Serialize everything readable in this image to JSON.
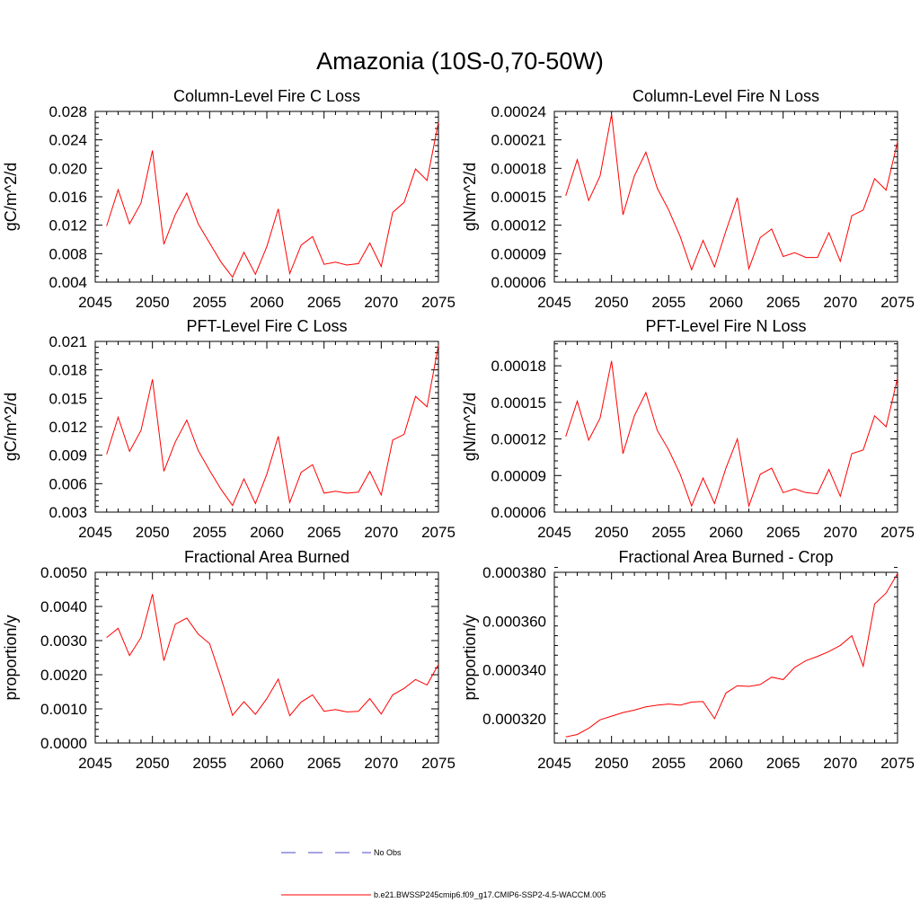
{
  "title": "Amazonia (10S-0,70-50W)",
  "legend": [
    {
      "label": "No Obs",
      "style": "dashed",
      "color": "#4a4ac8"
    },
    {
      "label": "b.e21.BWSSP245cmip6.f09_g17.CMIP6-SSP2-4.5-WACCM.005",
      "style": "solid",
      "color": "#ff0000"
    }
  ],
  "chart_data": [
    {
      "type": "line",
      "title": "Column-Level Fire C Loss",
      "ylabel": "gC/m^2/d",
      "xlabel": "",
      "xlim": [
        2045,
        2075
      ],
      "xticks": [
        "2045",
        "2050",
        "2055",
        "2060",
        "2065",
        "2070",
        "2075"
      ],
      "ylim": [
        0.004,
        0.028
      ],
      "yticks": [
        "0.004",
        "0.008",
        "0.012",
        "0.016",
        "0.020",
        "0.024",
        "0.028"
      ],
      "x": [
        2046,
        2047,
        2048,
        2049,
        2050,
        2051,
        2052,
        2053,
        2054,
        2055,
        2056,
        2057,
        2058,
        2059,
        2060,
        2061,
        2062,
        2063,
        2064,
        2065,
        2066,
        2067,
        2068,
        2069,
        2070,
        2071,
        2072,
        2073,
        2074,
        2075
      ],
      "series": [
        {
          "name": "b.e21.BWSSP245cmip6.f09_g17.CMIP6-SSP2-4.5-WACCM.005",
          "color": "#ff0000",
          "values": [
            0.0119,
            0.017,
            0.0122,
            0.0151,
            0.0225,
            0.0093,
            0.0135,
            0.0165,
            0.0122,
            0.0095,
            0.0068,
            0.0047,
            0.0082,
            0.0051,
            0.009,
            0.0143,
            0.0052,
            0.0092,
            0.0104,
            0.0065,
            0.0068,
            0.0064,
            0.0066,
            0.0095,
            0.0062,
            0.0138,
            0.0152,
            0.0199,
            0.0183,
            0.0265
          ]
        }
      ]
    },
    {
      "type": "line",
      "title": "Column-Level Fire N Loss",
      "ylabel": "gN/m^2/d",
      "xlabel": "",
      "xlim": [
        2045,
        2075
      ],
      "xticks": [
        "2045",
        "2050",
        "2055",
        "2060",
        "2065",
        "2070",
        "2075"
      ],
      "ylim": [
        6e-05,
        0.00024
      ],
      "yticks": [
        "0.00006",
        "0.00009",
        "0.00012",
        "0.00015",
        "0.00018",
        "0.00021",
        "0.00024"
      ],
      "x": [
        2046,
        2047,
        2048,
        2049,
        2050,
        2051,
        2052,
        2053,
        2054,
        2055,
        2056,
        2057,
        2058,
        2059,
        2060,
        2061,
        2062,
        2063,
        2064,
        2065,
        2066,
        2067,
        2068,
        2069,
        2070,
        2071,
        2072,
        2073,
        2074,
        2075
      ],
      "series": [
        {
          "name": "b.e21.BWSSP245cmip6.f09_g17.CMIP6-SSP2-4.5-WACCM.005",
          "color": "#ff0000",
          "values": [
            0.000151,
            0.000189,
            0.000146,
            0.000172,
            0.000237,
            0.000131,
            0.000172,
            0.000197,
            0.000159,
            0.000136,
            0.000108,
            7.3e-05,
            0.000104,
            7.6e-05,
            0.000114,
            0.000149,
            7.4e-05,
            0.000107,
            0.000116,
            8.7e-05,
            9.1e-05,
            8.6e-05,
            8.6e-05,
            0.000112,
            8.2e-05,
            0.00013,
            0.000136,
            0.000169,
            0.000157,
            0.000208
          ]
        }
      ]
    },
    {
      "type": "line",
      "title": "PFT-Level Fire C Loss",
      "ylabel": "gC/m^2/d",
      "xlabel": "",
      "xlim": [
        2045,
        2075
      ],
      "xticks": [
        "2045",
        "2050",
        "2055",
        "2060",
        "2065",
        "2070",
        "2075"
      ],
      "ylim": [
        0.003,
        0.021
      ],
      "yticks": [
        "0.003",
        "0.006",
        "0.009",
        "0.012",
        "0.015",
        "0.018",
        "0.021"
      ],
      "x": [
        2046,
        2047,
        2048,
        2049,
        2050,
        2051,
        2052,
        2053,
        2054,
        2055,
        2056,
        2057,
        2058,
        2059,
        2060,
        2061,
        2062,
        2063,
        2064,
        2065,
        2066,
        2067,
        2068,
        2069,
        2070,
        2071,
        2072,
        2073,
        2074,
        2075
      ],
      "series": [
        {
          "name": "b.e21.BWSSP245cmip6.f09_g17.CMIP6-SSP2-4.5-WACCM.005",
          "color": "#ff0000",
          "values": [
            0.0091,
            0.013,
            0.0094,
            0.0116,
            0.017,
            0.0073,
            0.0104,
            0.0127,
            0.0095,
            0.0074,
            0.0054,
            0.0037,
            0.0065,
            0.0039,
            0.007,
            0.011,
            0.004,
            0.0072,
            0.008,
            0.005,
            0.0052,
            0.005,
            0.0051,
            0.0073,
            0.0048,
            0.0106,
            0.0112,
            0.0152,
            0.0141,
            0.0206
          ]
        }
      ]
    },
    {
      "type": "line",
      "title": "PFT-Level Fire N Loss",
      "ylabel": "gN/m^2/d",
      "xlabel": "",
      "xlim": [
        2045,
        2075
      ],
      "xticks": [
        "2045",
        "2050",
        "2055",
        "2060",
        "2065",
        "2070",
        "2075"
      ],
      "ylim": [
        6e-05,
        0.0002
      ],
      "yticks": [
        "0.00006",
        "0.00009",
        "0.00012",
        "0.00015",
        "0.00018"
      ],
      "x": [
        2046,
        2047,
        2048,
        2049,
        2050,
        2051,
        2052,
        2053,
        2054,
        2055,
        2056,
        2057,
        2058,
        2059,
        2060,
        2061,
        2062,
        2063,
        2064,
        2065,
        2066,
        2067,
        2068,
        2069,
        2070,
        2071,
        2072,
        2073,
        2074,
        2075
      ],
      "series": [
        {
          "name": "b.e21.BWSSP245cmip6.f09_g17.CMIP6-SSP2-4.5-WACCM.005",
          "color": "#ff0000",
          "values": [
            0.000122,
            0.000151,
            0.000119,
            0.000137,
            0.000184,
            0.000108,
            0.000139,
            0.000158,
            0.000127,
            0.000111,
            9.1e-05,
            6.5e-05,
            8.8e-05,
            6.7e-05,
            9.6e-05,
            0.00012,
            6.5e-05,
            9.1e-05,
            9.6e-05,
            7.6e-05,
            7.9e-05,
            7.6e-05,
            7.5e-05,
            9.5e-05,
            7.3e-05,
            0.000108,
            0.000111,
            0.000139,
            0.00013,
            0.00017
          ]
        }
      ]
    },
    {
      "type": "line",
      "title": "Fractional Area Burned",
      "ylabel": "proportion/y",
      "xlabel": "",
      "xlim": [
        2045,
        2075
      ],
      "xticks": [
        "2045",
        "2050",
        "2055",
        "2060",
        "2065",
        "2070",
        "2075"
      ],
      "ylim": [
        0.0,
        0.005
      ],
      "yticks": [
        "0.0000",
        "0.0010",
        "0.0020",
        "0.0030",
        "0.0040",
        "0.0050"
      ],
      "x": [
        2046,
        2047,
        2048,
        2049,
        2050,
        2051,
        2052,
        2053,
        2054,
        2055,
        2056,
        2057,
        2058,
        2059,
        2060,
        2061,
        2062,
        2063,
        2064,
        2065,
        2066,
        2067,
        2068,
        2069,
        2070,
        2071,
        2072,
        2073,
        2074,
        2075
      ],
      "series": [
        {
          "name": "b.e21.BWSSP245cmip6.f09_g17.CMIP6-SSP2-4.5-WACCM.005",
          "color": "#ff0000",
          "values": [
            0.00309,
            0.00336,
            0.00256,
            0.00309,
            0.00436,
            0.00241,
            0.00348,
            0.00366,
            0.00319,
            0.00291,
            0.0019,
            0.00081,
            0.00121,
            0.00084,
            0.0013,
            0.00187,
            0.0008,
            0.0012,
            0.00141,
            0.00093,
            0.00098,
            0.00091,
            0.00093,
            0.0013,
            0.00085,
            0.00141,
            0.0016,
            0.00186,
            0.0017,
            0.0023
          ]
        }
      ]
    },
    {
      "type": "line",
      "title": "Fractional Area Burned - Crop",
      "ylabel": "proportion/y",
      "xlabel": "",
      "xlim": [
        2045,
        2075
      ],
      "xticks": [
        "2045",
        "2050",
        "2055",
        "2060",
        "2065",
        "2070",
        "2075"
      ],
      "ylim": [
        0.00031,
        0.00038
      ],
      "yticks": [
        "0.000320",
        "0.000340",
        "0.000360",
        "0.000380"
      ],
      "x": [
        2046,
        2047,
        2048,
        2049,
        2050,
        2051,
        2052,
        2053,
        2054,
        2055,
        2056,
        2057,
        2058,
        2059,
        2060,
        2061,
        2062,
        2063,
        2064,
        2065,
        2066,
        2067,
        2068,
        2069,
        2070,
        2071,
        2072,
        2073,
        2074,
        2075
      ],
      "series": [
        {
          "name": "b.e21.BWSSP245cmip6.f09_g17.CMIP6-SSP2-4.5-WACCM.005",
          "color": "#ff0000",
          "values": [
            0.0003125,
            0.0003135,
            0.000316,
            0.0003195,
            0.000321,
            0.0003225,
            0.0003235,
            0.0003248,
            0.0003255,
            0.000326,
            0.0003255,
            0.0003268,
            0.000327,
            0.00032,
            0.0003305,
            0.0003335,
            0.0003332,
            0.000334,
            0.000337,
            0.000336,
            0.000341,
            0.0003438,
            0.0003455,
            0.0003475,
            0.00035,
            0.000354,
            0.0003415,
            0.000367,
            0.0003715,
            0.0003795
          ]
        }
      ]
    }
  ]
}
